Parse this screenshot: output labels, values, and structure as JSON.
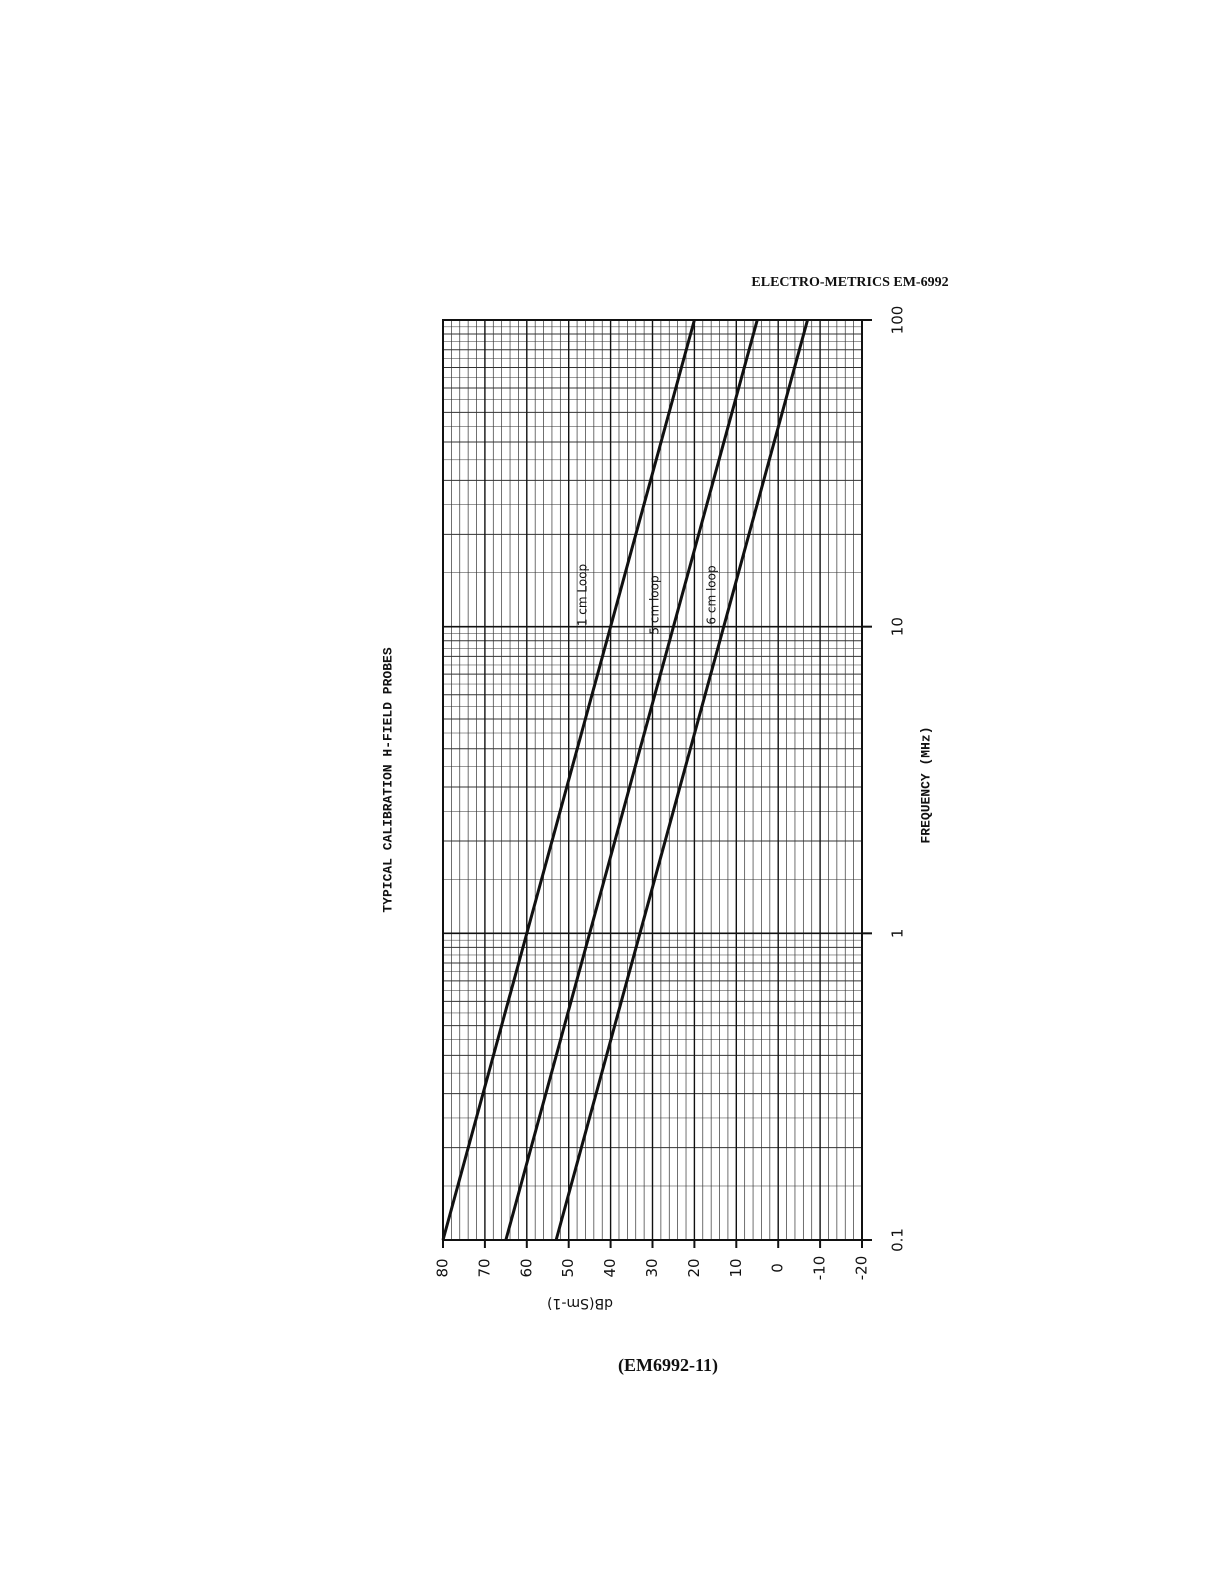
{
  "header": "ELECTRO-METRICS EM-6992",
  "footer": "(EM6992-11)",
  "chart_data": {
    "type": "line",
    "title": "TYPICAL CALIBRATION H-FIELD PROBES",
    "x_label": "FREQUENCY (MHz)",
    "y_label": "dB(Sm-1)",
    "x": [
      0.1,
      100
    ],
    "xlog": true,
    "xlim": [
      0.1,
      100
    ],
    "xticks": [
      0.1,
      1,
      10,
      100
    ],
    "ylim": [
      -20,
      80
    ],
    "yticks": [
      80,
      70,
      60,
      50,
      40,
      30,
      20,
      10,
      0,
      -10,
      -20
    ],
    "grid": true,
    "series": [
      {
        "name": "1 cm Loop",
        "color": "#111111",
        "values": [
          80,
          20
        ]
      },
      {
        "name": "5 cm loop",
        "color": "#111111",
        "values": [
          65,
          5
        ]
      },
      {
        "name": "6 cm loop",
        "color": "#111111",
        "values": [
          53,
          -7
        ]
      }
    ]
  }
}
